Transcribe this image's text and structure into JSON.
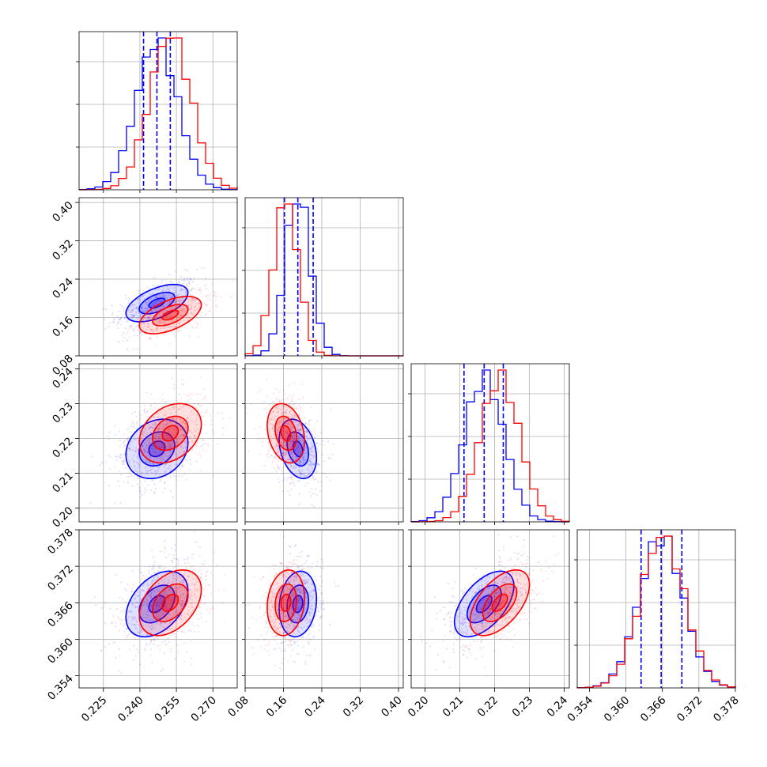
{
  "chart_data": {
    "type": "corner",
    "grid": true,
    "colors": {
      "samples_a": "#0000ff",
      "samples_b": "#ff0000"
    },
    "parameters": [
      {
        "range": [
          0.215,
          0.28
        ],
        "ticks": [
          0.225,
          0.24,
          0.255,
          0.27
        ],
        "tick_labels": [
          "0.225",
          "0.240",
          "0.255",
          "0.270"
        ]
      },
      {
        "range": [
          0.08,
          0.41
        ],
        "ticks": [
          0.08,
          0.16,
          0.24,
          0.32,
          0.4
        ],
        "tick_labels": [
          "0.08",
          "0.16",
          "0.24",
          "0.32",
          "0.40"
        ]
      },
      {
        "range": [
          0.196,
          0.2415
        ],
        "ticks": [
          0.2,
          0.21,
          0.22,
          0.23,
          0.24
        ],
        "tick_labels": [
          "0.20",
          "0.21",
          "0.22",
          "0.23",
          "0.24"
        ]
      },
      {
        "range": [
          0.352,
          0.378
        ],
        "ticks": [
          0.354,
          0.36,
          0.366,
          0.372,
          0.378
        ],
        "tick_labels": [
          "0.354",
          "0.360",
          "0.366",
          "0.372",
          "0.378"
        ]
      }
    ],
    "series": [
      {
        "color": "#0000ff",
        "mean": [
          0.247,
          0.19,
          0.217,
          0.3658
        ],
        "std": [
          0.0085,
          0.026,
          0.0057,
          0.0036
        ],
        "corr": [
          [
            1,
            0.55,
            0.2,
            0.4
          ],
          [
            0.55,
            1,
            -0.3,
            0.15
          ],
          [
            0.2,
            -0.3,
            1,
            0.55
          ],
          [
            0.4,
            0.15,
            0.55,
            1
          ]
        ],
        "quantile_lines": {
          "0": [
            0.2415,
            0.247,
            0.2525
          ],
          "1": [
            0.162,
            0.19,
            0.222
          ],
          "2": [
            0.2112,
            0.217,
            0.2225
          ],
          "3": [
            0.3625,
            0.3658,
            0.3692
          ]
        }
      },
      {
        "color": "#ff0000",
        "mean": [
          0.2525,
          0.165,
          0.2215,
          0.366
        ],
        "std": [
          0.0085,
          0.026,
          0.0057,
          0.0036
        ],
        "corr": [
          [
            1,
            0.55,
            0.3,
            0.4
          ],
          [
            0.55,
            1,
            -0.25,
            0.15
          ],
          [
            0.3,
            -0.25,
            1,
            0.55
          ],
          [
            0.4,
            0.15,
            0.55,
            1
          ]
        ]
      }
    ]
  }
}
